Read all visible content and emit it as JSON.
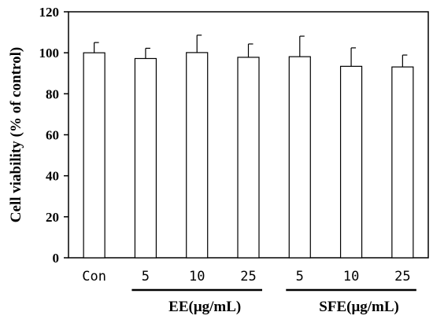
{
  "chart_data": {
    "type": "bar",
    "categories": [
      "Con",
      "5",
      "10",
      "25",
      "5",
      "10",
      "25"
    ],
    "values": [
      100,
      97.2,
      100.1,
      97.8,
      98.1,
      93.4,
      93.1
    ],
    "errors": [
      5,
      5,
      8.5,
      6.5,
      10,
      9,
      5.8
    ],
    "ylabel": "Cell viability (% of control)",
    "xlabel": "",
    "ylim": [
      0,
      120
    ],
    "yticks": [
      0,
      20,
      40,
      60,
      80,
      100,
      120
    ],
    "groups": [
      {
        "label": "EE(μg/mL)",
        "start": 1,
        "end": 3
      },
      {
        "label": "SFE(μg/mL)",
        "start": 4,
        "end": 6
      }
    ],
    "bar_fill": "#ffffff",
    "bar_stroke": "#000000",
    "grid": false
  }
}
